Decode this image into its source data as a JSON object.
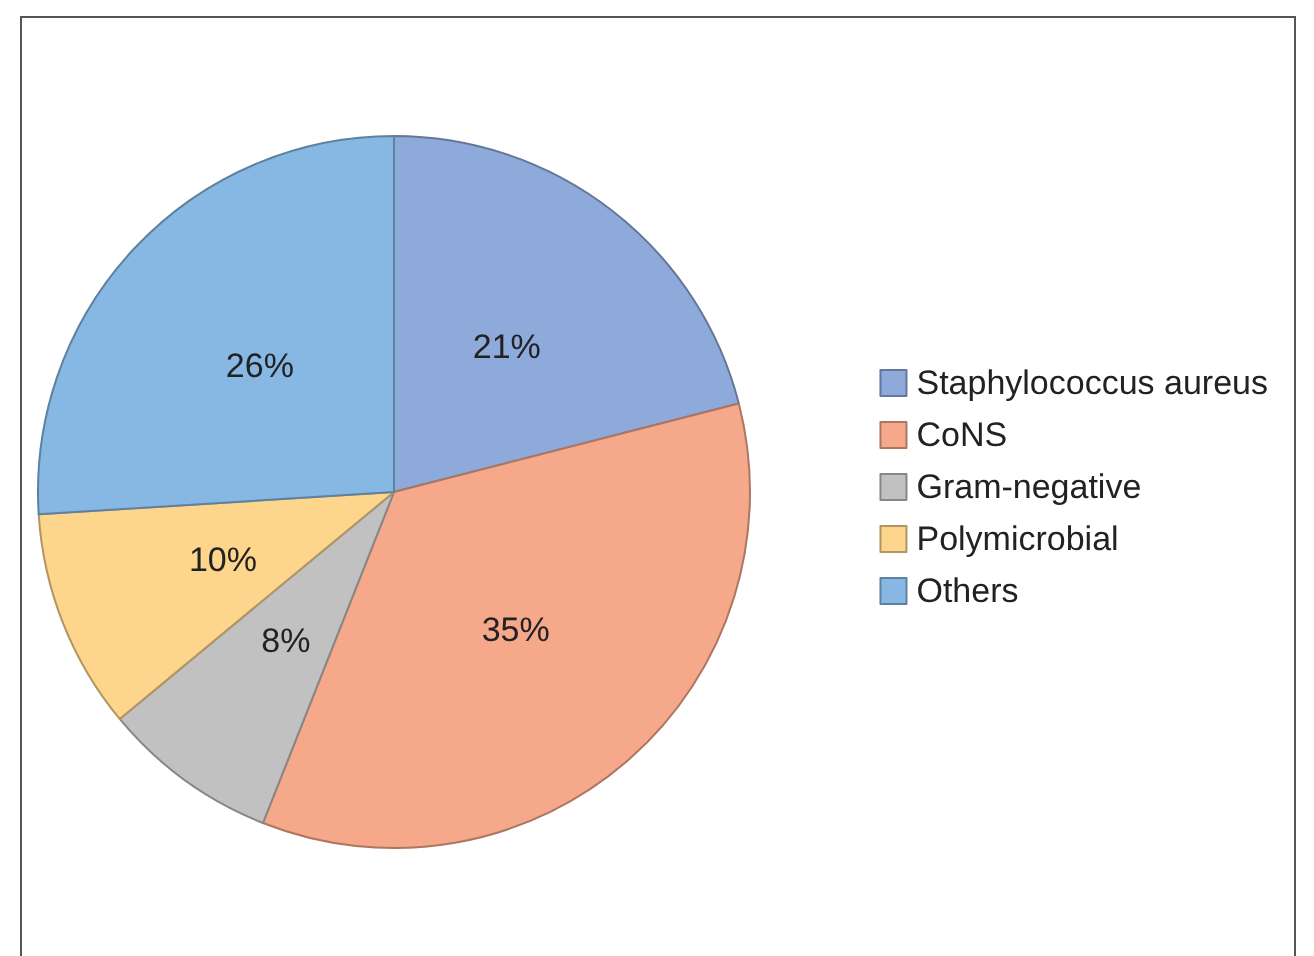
{
  "chart_data": {
    "type": "pie",
    "categories": [
      "Staphylococcus aureus",
      "CoNS",
      "Gram-negative",
      "Polymicrobial",
      "Others"
    ],
    "values": [
      21,
      35,
      8,
      10,
      26
    ],
    "colors": [
      "#8eaadb",
      "#f5a88a",
      "#c1c1c1",
      "#fdd58c",
      "#86b8e3"
    ],
    "value_labels": [
      "21%",
      "35%",
      "8%",
      "10%",
      "26%"
    ],
    "legend": "right"
  }
}
